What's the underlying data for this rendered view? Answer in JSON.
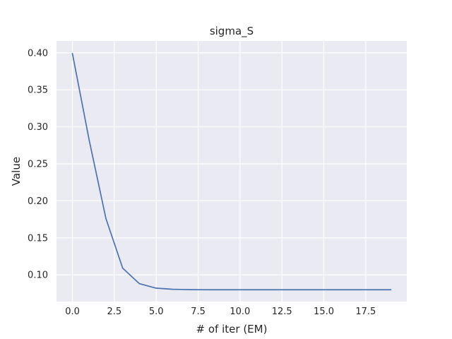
{
  "chart_data": {
    "type": "line",
    "title": "sigma_S",
    "xlabel": "# of iter (EM)",
    "ylabel": "Value",
    "xlim": [
      -0.95,
      19.95
    ],
    "ylim": [
      0.0639,
      0.416
    ],
    "xticks": [
      0.0,
      2.5,
      5.0,
      7.5,
      10.0,
      12.5,
      15.0,
      17.5
    ],
    "xtick_labels": [
      "0.0",
      "2.5",
      "5.0",
      "7.5",
      "10.0",
      "12.5",
      "15.0",
      "17.5"
    ],
    "yticks": [
      0.1,
      0.15,
      0.2,
      0.25,
      0.3,
      0.35,
      0.4
    ],
    "ytick_labels": [
      "0.10",
      "0.15",
      "0.20",
      "0.25",
      "0.30",
      "0.35",
      "0.40"
    ],
    "grid": true,
    "series": [
      {
        "color": "#4c72b0",
        "x": [
          0,
          1,
          2,
          3,
          4,
          5,
          6,
          7,
          8,
          9,
          10,
          11,
          12,
          13,
          14,
          15,
          16,
          17,
          18,
          19
        ],
        "y": [
          0.399,
          0.282,
          0.176,
          0.109,
          0.088,
          0.082,
          0.0805,
          0.08,
          0.0799,
          0.0799,
          0.0799,
          0.0799,
          0.0799,
          0.0799,
          0.0799,
          0.0799,
          0.0799,
          0.0799,
          0.0799,
          0.0799
        ]
      }
    ]
  }
}
